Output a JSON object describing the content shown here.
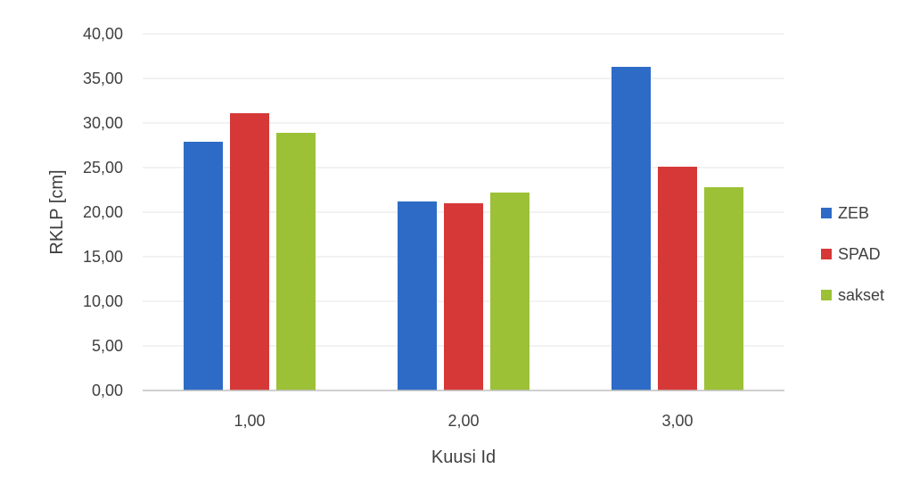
{
  "chart_data": {
    "type": "bar",
    "categories": [
      "1,00",
      "2,00",
      "3,00"
    ],
    "series": [
      {
        "name": "ZEB",
        "color": "#2e6bc6",
        "values": [
          27.9,
          21.2,
          36.3
        ]
      },
      {
        "name": "SPAD",
        "color": "#d63838",
        "values": [
          31.1,
          21.0,
          25.1
        ]
      },
      {
        "name": "sakset",
        "color": "#9cc136",
        "values": [
          28.9,
          22.2,
          22.8
        ]
      }
    ],
    "xlabel": "Kuusi Id",
    "ylabel": "RKLP [cm]",
    "ylim": [
      0,
      40
    ],
    "yticks": [
      "0,00",
      "5,00",
      "10,00",
      "15,00",
      "20,00",
      "25,00",
      "30,00",
      "35,00",
      "40,00"
    ],
    "grid": true,
    "legend_position": "right"
  }
}
